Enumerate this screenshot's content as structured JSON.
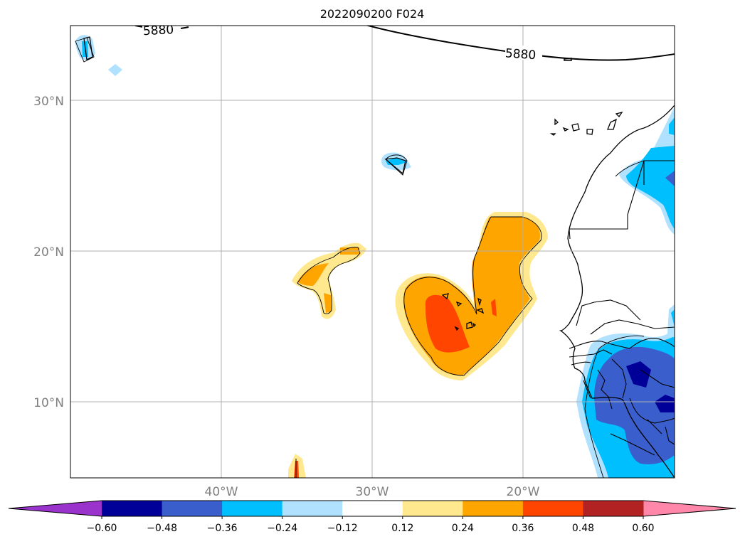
{
  "title": "2022090200 F024",
  "map": {
    "lat_labels": [
      "30°N",
      "20°N",
      "10°N"
    ],
    "lon_labels": [
      "40°W",
      "30°W",
      "20°W"
    ],
    "contour_label": "5880",
    "grid": true
  },
  "colorbar": {
    "orientation": "horizontal",
    "extend": "both",
    "colors": [
      "#9933cc",
      "#000099",
      "#3a5fcd",
      "#00bfff",
      "#b0e2ff",
      "#ffffff",
      "#ffe88e",
      "#ffa500",
      "#ff4500",
      "#b22222",
      "#ff88aa"
    ],
    "tick_labels": [
      "−0.60",
      "−0.48",
      "−0.36",
      "−0.24",
      "−0.12",
      "0.12",
      "0.24",
      "0.36",
      "0.48",
      "0.60"
    ]
  },
  "colors": {
    "light_yellow": "#ffe88e",
    "orange": "#ffa500",
    "red_orange": "#ff4500",
    "light_blue": "#b0e2ff",
    "deep_sky_blue": "#00bfff",
    "royal_blue": "#3a5fcd",
    "navy": "#000099"
  }
}
